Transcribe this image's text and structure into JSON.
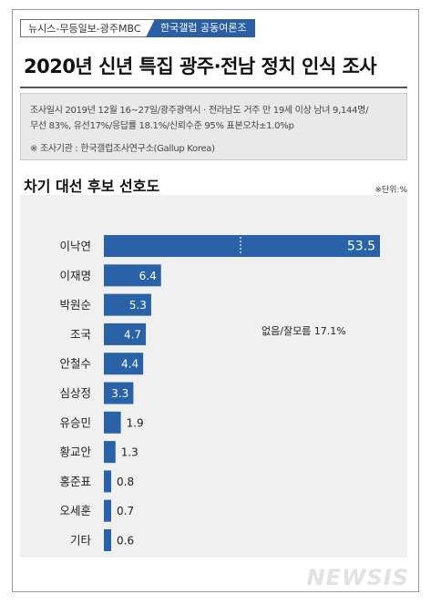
{
  "header": {
    "source_tag": "뉴시스-무등일보-광주MBC",
    "org_tag": "한국갤럽 공동여론조사",
    "title": "2020년 신년 특집 광주·전남 정치 인식 조사"
  },
  "info": {
    "line1": "조사일시 2019년 12월 16~27일/광주광역시 · 전라남도 거주 만 19세 이상 남녀 9,144명/",
    "line2": "무선 83%, 유선17%/응답률 18.1%/신뢰수준 95% 표본오차±1.0%p",
    "line3": "※ 조사기관 : 한국갤럽조사연구소(Gallup Korea)"
  },
  "chart_title": "차기 대선 후보 선호도",
  "unit": "※단위:%",
  "note": "없음/잘모름 17.1%",
  "watermark": "NEWSIS",
  "chart_data": {
    "type": "bar",
    "orientation": "horizontal",
    "title": "차기 대선 후보 선호도",
    "unit": "%",
    "categories": [
      "이낙연",
      "이재명",
      "박원순",
      "조국",
      "안철수",
      "심상정",
      "유승민",
      "황교안",
      "홍준표",
      "오세훈",
      "기타"
    ],
    "values": [
      53.5,
      6.4,
      5.3,
      4.7,
      4.4,
      3.3,
      1.9,
      1.3,
      0.8,
      0.7,
      0.6
    ],
    "value_labels": [
      "53.5",
      "6.4",
      "5.3",
      "4.7",
      "4.4",
      "3.3",
      "1.9",
      "1.3",
      "0.8",
      "0.7",
      "0.6"
    ],
    "axis_break_on_first_bar": true,
    "bar_color": "#2a62a8",
    "grid": false
  }
}
